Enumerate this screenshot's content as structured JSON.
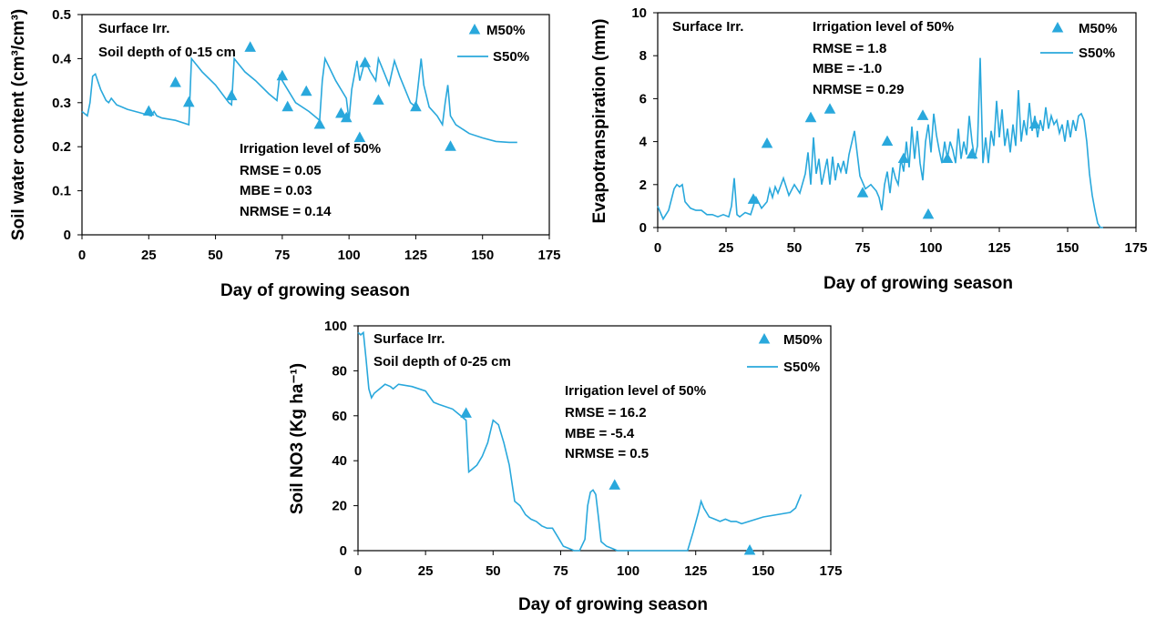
{
  "colors": {
    "series": "#29a8dc",
    "axis": "#000000",
    "frame": "#000000"
  },
  "chart_data": [
    {
      "type": "line",
      "title": "",
      "xlabel": "Day of growing season",
      "ylabel": "Soil water content (cm³/cm³)",
      "xlim": [
        0,
        175
      ],
      "ylim": [
        0,
        0.5
      ],
      "xticks": [
        "0",
        "25",
        "50",
        "75",
        "100",
        "125",
        "150",
        "175"
      ],
      "yticks": [
        "0",
        "0.1",
        "0.2",
        "0.3",
        "0.4",
        "0.5"
      ],
      "annotations_topleft": [
        "Surface Irr.",
        "Soil depth of 0-15 cm"
      ],
      "stats": [
        "Irrigation level of 50%",
        "RMSE = 0.05",
        "MBE   = 0.03",
        "NRMSE = 0.14"
      ],
      "legend": {
        "placement": "top-right",
        "markers_label": "M50%",
        "line_label": "S50%"
      },
      "series": [
        {
          "name": "S50%",
          "kind": "line",
          "x": [
            0,
            2,
            3,
            4,
            5,
            7,
            9,
            10,
            11,
            13,
            15,
            17,
            20,
            23,
            26,
            27,
            28,
            30,
            35,
            40,
            41,
            45,
            50,
            55,
            56,
            57,
            61,
            65,
            70,
            73,
            74,
            77,
            80,
            85,
            89,
            90,
            91,
            95,
            99,
            100,
            101,
            103,
            104,
            106,
            108,
            110,
            111,
            113,
            115,
            117,
            119,
            121,
            123,
            125,
            127,
            128,
            130,
            133,
            135,
            136,
            137,
            138,
            140,
            145,
            150,
            155,
            160,
            163
          ],
          "y": [
            0.28,
            0.27,
            0.3,
            0.36,
            0.365,
            0.33,
            0.305,
            0.3,
            0.31,
            0.295,
            0.29,
            0.285,
            0.28,
            0.275,
            0.27,
            0.28,
            0.27,
            0.265,
            0.26,
            0.25,
            0.4,
            0.37,
            0.34,
            0.3,
            0.295,
            0.4,
            0.37,
            0.35,
            0.32,
            0.305,
            0.36,
            0.33,
            0.3,
            0.28,
            0.26,
            0.35,
            0.4,
            0.35,
            0.31,
            0.26,
            0.33,
            0.395,
            0.35,
            0.395,
            0.37,
            0.35,
            0.4,
            0.37,
            0.34,
            0.395,
            0.36,
            0.33,
            0.3,
            0.29,
            0.4,
            0.34,
            0.29,
            0.27,
            0.25,
            0.3,
            0.34,
            0.27,
            0.25,
            0.23,
            0.22,
            0.212,
            0.21,
            0.21
          ]
        },
        {
          "name": "M50%",
          "kind": "markers",
          "x": [
            25,
            35,
            40,
            56,
            63,
            75,
            77,
            84,
            89,
            97,
            99,
            104,
            106,
            111,
            125,
            138
          ],
          "y": [
            0.28,
            0.345,
            0.3,
            0.315,
            0.425,
            0.36,
            0.29,
            0.325,
            0.25,
            0.275,
            0.265,
            0.22,
            0.39,
            0.305,
            0.29,
            0.2
          ]
        }
      ]
    },
    {
      "type": "line",
      "title": "",
      "xlabel": "Day of growing season",
      "ylabel": "Evapotranspiration  (mm)",
      "xlim": [
        0,
        175
      ],
      "ylim": [
        0,
        10
      ],
      "xticks": [
        "0",
        "25",
        "50",
        "75",
        "100",
        "125",
        "150",
        "175"
      ],
      "yticks": [
        "0",
        "2",
        "4",
        "6",
        "8",
        "10"
      ],
      "annotations_topleft": [
        "Surface Irr."
      ],
      "stats": [
        "Irrigation level of  50%",
        "RMSE = 1.8",
        "MBE   = -1.0",
        "NRMSE = 0.29"
      ],
      "legend": {
        "placement": "top-right",
        "markers_label": "M50%",
        "line_label": "S50%"
      },
      "series": [
        {
          "name": "S50%",
          "kind": "line",
          "x": [
            0,
            2,
            4,
            6,
            7,
            8,
            9,
            10,
            12,
            14,
            16,
            18,
            20,
            22,
            24,
            26,
            27,
            28,
            29,
            30,
            32,
            34,
            36,
            38,
            40,
            41,
            42,
            43,
            44,
            46,
            48,
            50,
            52,
            54,
            55,
            56,
            57,
            58,
            59,
            60,
            61,
            62,
            63,
            64,
            65,
            66,
            67,
            68,
            69,
            70,
            72,
            74,
            76,
            78,
            80,
            81,
            82,
            83,
            84,
            85,
            86,
            87,
            88,
            89,
            90,
            91,
            92,
            93,
            94,
            95,
            96,
            97,
            98,
            99,
            100,
            101,
            102,
            103,
            104,
            105,
            106,
            107,
            108,
            109,
            110,
            111,
            112,
            113,
            114,
            115,
            116,
            117,
            118,
            119,
            120,
            121,
            122,
            123,
            124,
            125,
            126,
            127,
            128,
            129,
            130,
            131,
            132,
            133,
            134,
            135,
            136,
            137,
            138,
            139,
            140,
            141,
            142,
            143,
            144,
            145,
            146,
            147,
            148,
            149,
            150,
            151,
            152,
            153,
            154,
            155,
            156,
            157,
            158,
            159,
            160,
            161,
            162,
            163
          ],
          "y": [
            1.0,
            0.4,
            0.8,
            1.8,
            2.0,
            1.9,
            2.0,
            1.2,
            0.9,
            0.8,
            0.8,
            0.6,
            0.6,
            0.5,
            0.6,
            0.5,
            1.0,
            2.3,
            0.6,
            0.5,
            0.7,
            0.6,
            1.4,
            0.9,
            1.2,
            1.8,
            1.4,
            1.9,
            1.6,
            2.3,
            1.5,
            2.0,
            1.6,
            2.5,
            3.5,
            2.0,
            4.2,
            2.5,
            3.2,
            2.0,
            2.6,
            3.2,
            2.0,
            3.3,
            2.2,
            3.0,
            2.6,
            3.1,
            2.5,
            3.4,
            4.5,
            2.4,
            1.8,
            2.0,
            1.7,
            1.4,
            0.8,
            2.0,
            2.6,
            1.6,
            2.8,
            2.3,
            2.0,
            3.2,
            2.6,
            4.0,
            2.8,
            4.7,
            3.2,
            4.5,
            3.0,
            2.2,
            4.0,
            4.8,
            3.5,
            5.3,
            4.3,
            3.6,
            3.0,
            4.0,
            3.2,
            4.0,
            3.6,
            3.0,
            4.6,
            3.2,
            4.0,
            3.4,
            5.2,
            4.0,
            3.2,
            3.8,
            7.9,
            3.0,
            4.2,
            3.0,
            4.5,
            3.8,
            5.9,
            4.2,
            5.5,
            3.8,
            4.6,
            3.5,
            4.8,
            3.8,
            6.4,
            4.0,
            5.0,
            4.3,
            5.8,
            4.5,
            5.2,
            4.2,
            5.0,
            4.5,
            5.6,
            4.6,
            5.2,
            4.8,
            5.0,
            4.4,
            4.8,
            4.0,
            5.0,
            4.2,
            5.0,
            4.5,
            5.2,
            5.3,
            5.0,
            4.0,
            2.5,
            1.5,
            0.8,
            0.2,
            0.0,
            0.0
          ]
        },
        {
          "name": "M50%",
          "kind": "markers",
          "x": [
            35,
            40,
            56,
            63,
            75,
            84,
            90,
            97,
            99,
            106,
            115,
            138
          ],
          "y": [
            1.3,
            3.9,
            5.1,
            5.5,
            1.6,
            4.0,
            3.2,
            5.2,
            0.6,
            3.2,
            3.4,
            4.8
          ]
        }
      ]
    },
    {
      "type": "line",
      "title": "",
      "xlabel": "Day of growing season",
      "ylabel": "Soil NO3 (Kg ha⁻¹)",
      "xlim": [
        0,
        175
      ],
      "ylim": [
        0,
        100
      ],
      "xticks": [
        "0",
        "25",
        "50",
        "75",
        "100",
        "125",
        "150",
        "175"
      ],
      "yticks": [
        "0",
        "20",
        "40",
        "60",
        "80",
        "100"
      ],
      "annotations_topleft": [
        "Surface Irr.",
        "Soil depth of 0-25 cm"
      ],
      "stats": [
        "Irrigation level of  50%",
        "RMSE = 16.2",
        "MBE   = -5.4",
        "NRMSE = 0.5"
      ],
      "legend": {
        "placement": "top-right",
        "markers_label": "M50%",
        "line_label": "S50%"
      },
      "series": [
        {
          "name": "S50%",
          "kind": "line",
          "x": [
            0,
            1,
            2,
            3,
            4,
            5,
            6,
            8,
            10,
            12,
            13,
            15,
            20,
            25,
            28,
            30,
            35,
            38,
            40,
            41,
            42,
            44,
            46,
            48,
            50,
            52,
            54,
            56,
            58,
            60,
            62,
            64,
            66,
            68,
            70,
            72,
            74,
            76,
            78,
            80,
            82,
            84,
            85,
            86,
            87,
            88,
            89,
            90,
            92,
            94,
            96,
            100,
            110,
            120,
            122,
            124,
            126,
            127,
            128,
            130,
            132,
            134,
            136,
            138,
            140,
            142,
            150,
            160,
            162,
            163,
            164
          ],
          "y": [
            97,
            96,
            97,
            85,
            72,
            68,
            70,
            72,
            74,
            73,
            72,
            74,
            73,
            71,
            66,
            65,
            63,
            60,
            58,
            35,
            36,
            38,
            42,
            48,
            58,
            56,
            48,
            38,
            22,
            20,
            16,
            14,
            13,
            11,
            10,
            10,
            6,
            2,
            1,
            0,
            0,
            5,
            20,
            26,
            27,
            25,
            15,
            4,
            2,
            1,
            0,
            0,
            0,
            0,
            0,
            8,
            17,
            22,
            19,
            15,
            14,
            13,
            14,
            13,
            13,
            12,
            15,
            17,
            19,
            22,
            25
          ]
        },
        {
          "name": "M50%",
          "kind": "markers",
          "x": [
            40,
            95,
            145
          ],
          "y": [
            61,
            29,
            0
          ]
        }
      ]
    }
  ]
}
